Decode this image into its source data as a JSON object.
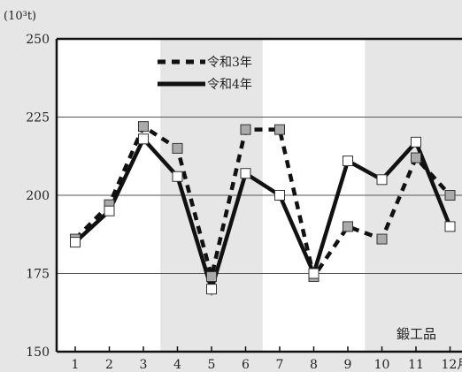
{
  "chart_data": {
    "type": "line",
    "unit_label": "(10³t)",
    "annotation": "鍛工品",
    "categories": [
      "1",
      "2",
      "3",
      "4",
      "5",
      "6",
      "7",
      "8",
      "9",
      "10",
      "11",
      "12月"
    ],
    "ylim": [
      150,
      250
    ],
    "yticks": [
      "150",
      "175",
      "200",
      "225",
      "250"
    ],
    "grid": "horizontal",
    "legend_position": "top-left",
    "series": [
      {
        "name": "令和3年",
        "line_style": "dashed",
        "marker_color": "#aaaaaa",
        "values": [
          186,
          197,
          222,
          215,
          174,
          221,
          221,
          174,
          190,
          186,
          212,
          200
        ]
      },
      {
        "name": "令和4年",
        "line_style": "solid",
        "marker_color": "#ffffff",
        "values": [
          185,
          195,
          218,
          206,
          170,
          207,
          200,
          175,
          211,
          205,
          217,
          190
        ]
      }
    ]
  }
}
